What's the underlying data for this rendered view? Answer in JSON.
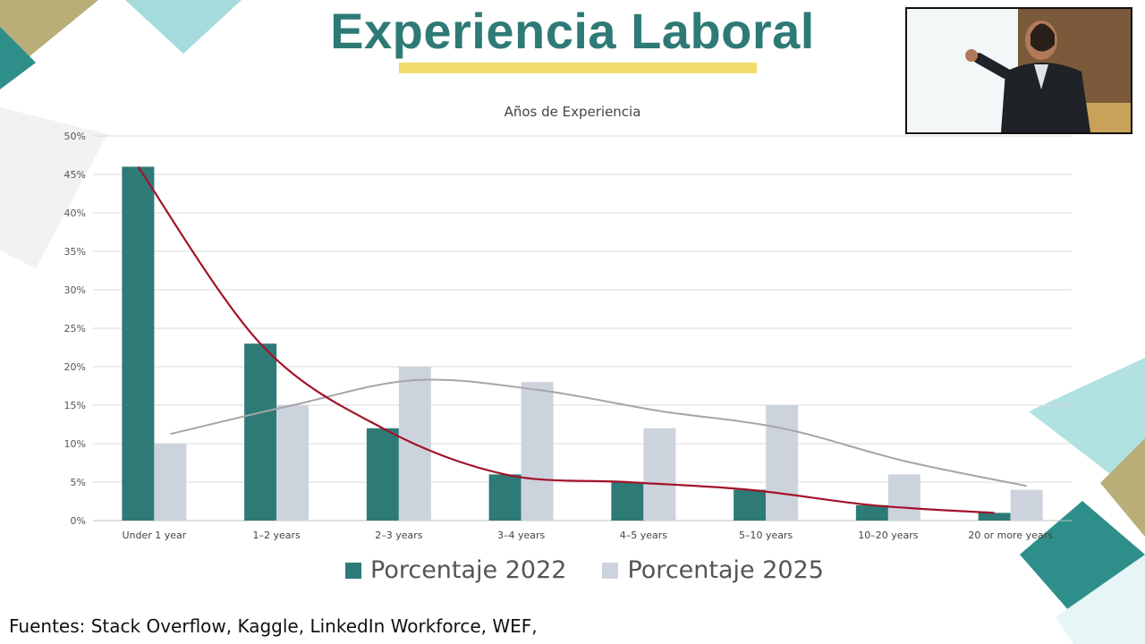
{
  "slide": {
    "title": "Experiencia Laboral",
    "sources": "Fuentes: Stack Overflow, Kaggle, LinkedIn Workforce, WEF,"
  },
  "colors": {
    "series_2022": "#2e7a76",
    "series_2025": "#cdd3dc",
    "trend_2022": "#a3122a",
    "trend_2025": "#a6a6a6",
    "title": "#2e7a76",
    "underline": "#f1dd6a"
  },
  "webcam": {
    "icon": "presenter-video-icon"
  },
  "chart_data": {
    "type": "bar",
    "title": "Años de Experiencia",
    "xlabel": "",
    "ylabel": "",
    "categories": [
      "Under 1 year",
      "1–2 years",
      "2–3 years",
      "3–4 years",
      "4–5 years",
      "5–10 years",
      "10–20 years",
      "20 or more years"
    ],
    "series": [
      {
        "name": "Porcentaje 2022",
        "values": [
          46,
          23,
          12,
          6,
          5,
          4,
          2,
          1
        ]
      },
      {
        "name": "Porcentaje 2025",
        "values": [
          10,
          15,
          20,
          18,
          12,
          15,
          6,
          4
        ]
      }
    ],
    "trendlines": true,
    "ylim": [
      0,
      50
    ],
    "yticks": [
      "0%",
      "5%",
      "10%",
      "15%",
      "20%",
      "25%",
      "30%",
      "35%",
      "40%",
      "45%",
      "50%"
    ],
    "grid": true,
    "legend": "bottom"
  }
}
